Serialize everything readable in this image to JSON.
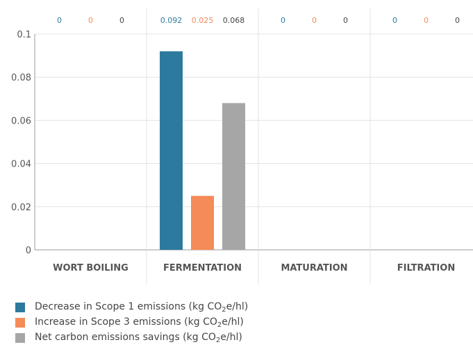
{
  "chart_data": {
    "type": "bar",
    "categories": [
      "WORT BOILING",
      "FERMENTATION",
      "MATURATION",
      "FILTRATION"
    ],
    "series": [
      {
        "name": "Decrease in Scope 1 emissions (kg CO2e/hl)",
        "color": "#2e7a9e",
        "values": [
          0,
          0.092,
          0,
          0
        ],
        "labels": [
          "0",
          "0.092",
          "0",
          "0"
        ]
      },
      {
        "name": "Increase in Scope 3 emissions (kg CO2e/hl)",
        "color": "#f58b58",
        "values": [
          0,
          0.025,
          0,
          0
        ],
        "labels": [
          "0",
          "0.025",
          "0",
          "0"
        ]
      },
      {
        "name": "Net carbon emissions savings (kg CO2e/hl)",
        "color": "#a6a6a6",
        "values": [
          0,
          0.068,
          0,
          0
        ],
        "labels": [
          "0",
          "0.068",
          "0",
          "0"
        ]
      }
    ],
    "yticks": [
      "0",
      "0.02",
      "0.04",
      "0.06",
      "0.08",
      "0.1"
    ],
    "ylim": [
      0,
      0.1
    ],
    "grid": true,
    "legend_position": "bottom-left"
  },
  "legend": [
    {
      "prefix": "Decrease in Scope 1 emissions (kg CO",
      "sub": "2",
      "suffix": "e/hl)"
    },
    {
      "prefix": "Increase in Scope 3 emissions (kg CO",
      "sub": "2",
      "suffix": "e/hl)"
    },
    {
      "prefix": "Net carbon emissions savings (kg CO",
      "sub": "2",
      "suffix": "e/hl)"
    }
  ]
}
